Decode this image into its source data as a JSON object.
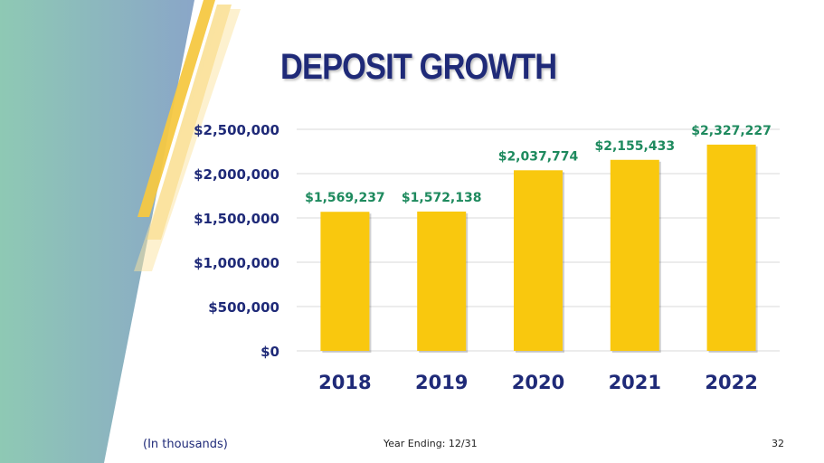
{
  "slide": {
    "title": "DEPOSIT GROWTH",
    "note": "(In thousands)",
    "year_ending": "Year Ending: 12/31",
    "page_number": "32",
    "colors": {
      "title": "#1f2a78",
      "bar": "#f9c80e",
      "value_label": "#1e8a5e",
      "axis_text": "#1f2a78",
      "accent_teal": "#8ec9b4",
      "accent_blue": "#8aa6c8",
      "accent_gold": "#f5c842"
    }
  },
  "chart_data": {
    "type": "bar",
    "categories": [
      "2018",
      "2019",
      "2020",
      "2021",
      "2022"
    ],
    "values": [
      1569237,
      1572138,
      2037774,
      2155433,
      2327227
    ],
    "value_labels": [
      "$1,569,237",
      "$1,572,138",
      "$2,037,774",
      "$2,155,433",
      "$2,327,227"
    ],
    "y_ticks": [
      0,
      500000,
      1000000,
      1500000,
      2000000,
      2500000
    ],
    "y_tick_labels": [
      "$0",
      "$500,000",
      "$1,000,000",
      "$1,500,000",
      "$2,000,000",
      "$2,500,000"
    ],
    "ylim": [
      0,
      2500000
    ],
    "grid": true,
    "legend": "none"
  }
}
